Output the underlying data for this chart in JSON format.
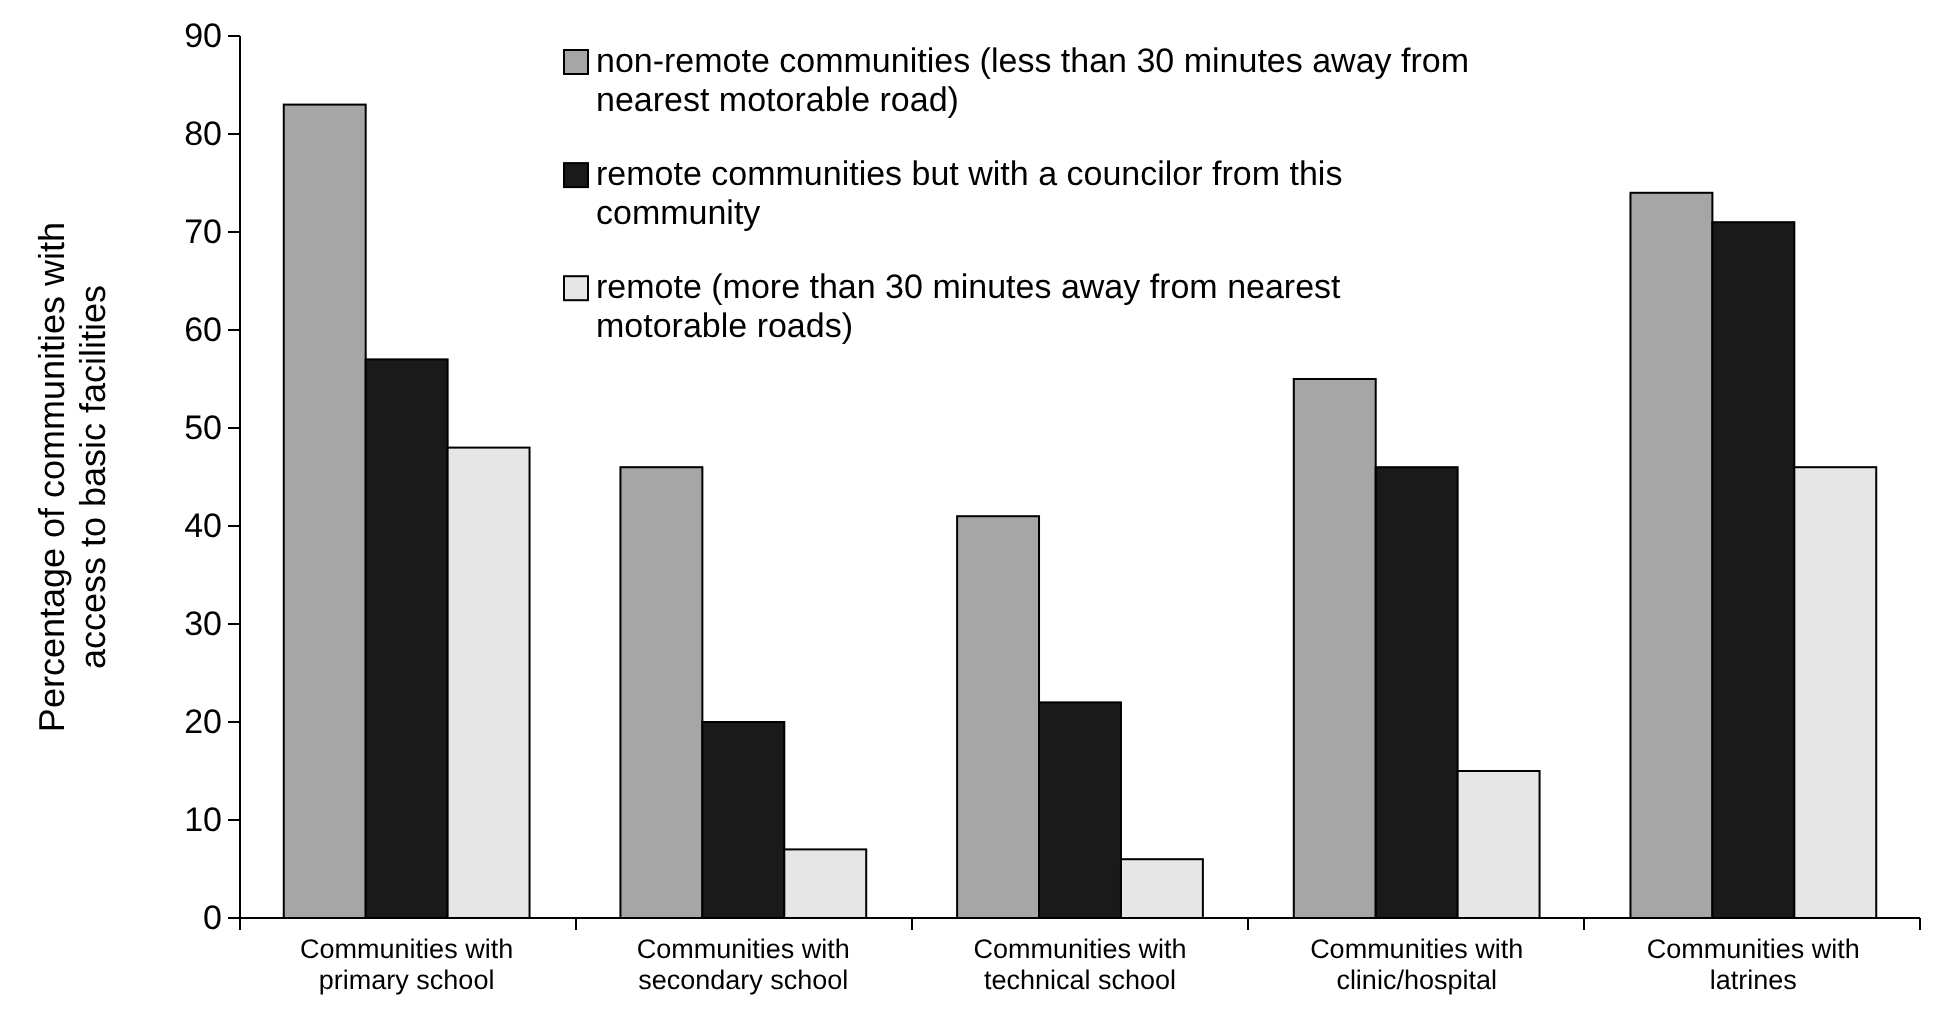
{
  "chart_data": {
    "type": "bar",
    "ylabel": "Percentage of communities with access to basic facilities",
    "categories": [
      "Communities with primary school",
      "Communities with secondary school",
      "Communities with technical school",
      "Communities with clinic/hospital",
      "Communities with latrines"
    ],
    "series": [
      {
        "name": "non-remote communities (less than 30 minutes away from nearest motorable road)",
        "color": "#a6a6a6",
        "values": [
          83,
          46,
          41,
          55,
          74
        ]
      },
      {
        "name": "remote communities but with a councilor from this community",
        "color": "#1a1a1a",
        "values": [
          57,
          20,
          22,
          46,
          71
        ]
      },
      {
        "name": "remote (more than 30 minutes away from nearest motorable roads)",
        "color": "#e6e6e6",
        "values": [
          48,
          7,
          6,
          15,
          46
        ]
      }
    ],
    "ylim": [
      0,
      90
    ],
    "yticks": [
      0,
      10,
      20,
      30,
      40,
      50,
      60,
      70,
      80,
      90
    ],
    "legend": "top"
  }
}
